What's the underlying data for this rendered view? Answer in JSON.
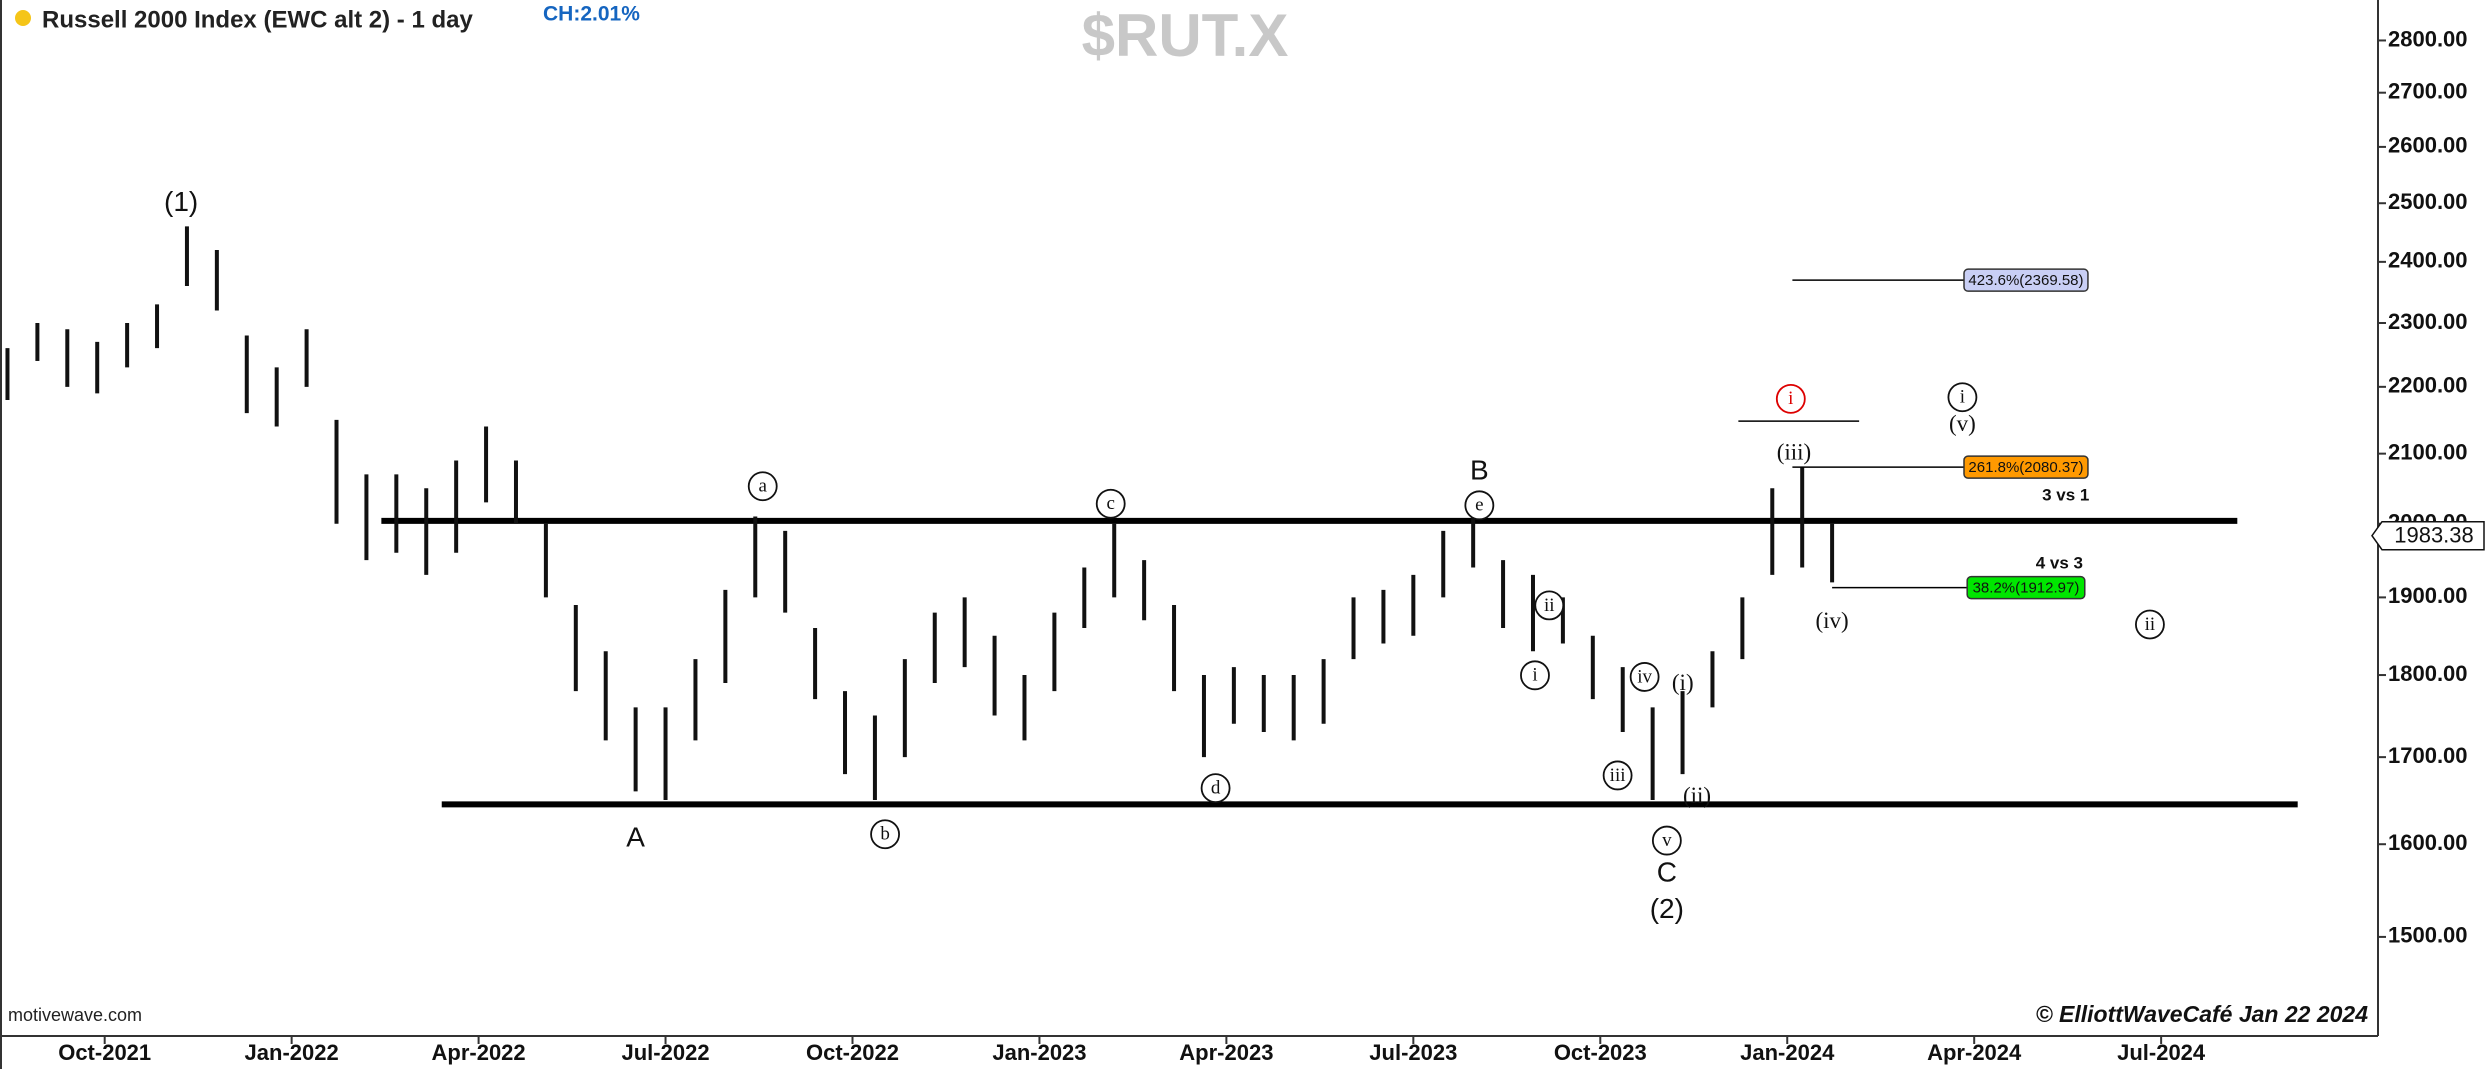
{
  "chart_data": {
    "type": "hl-bar",
    "title": "Russell 2000 Index (EWC alt 2) - 1 day",
    "change": "CH:2.01%",
    "symbol": "$RUT.X",
    "source": "motivewave.com",
    "credit": "© ElliottWaveCafé Jan 22 2024",
    "color": "#111111",
    "log_scale": true,
    "grid": false,
    "xlim": [
      2021.61,
      2024.79
    ],
    "ylim": [
      1400,
      2880
    ],
    "xticks": [
      {
        "value": 2021.75,
        "label": "Oct-2021"
      },
      {
        "value": 2022.0,
        "label": "Jan-2022"
      },
      {
        "value": 2022.25,
        "label": "Apr-2022"
      },
      {
        "value": 2022.5,
        "label": "Jul-2022"
      },
      {
        "value": 2022.75,
        "label": "Oct-2022"
      },
      {
        "value": 2023.0,
        "label": "Jan-2023"
      },
      {
        "value": 2023.25,
        "label": "Apr-2023"
      },
      {
        "value": 2023.5,
        "label": "Jul-2023"
      },
      {
        "value": 2023.75,
        "label": "Oct-2023"
      },
      {
        "value": 2024.0,
        "label": "Jan-2024"
      },
      {
        "value": 2024.25,
        "label": "Apr-2024"
      },
      {
        "value": 2024.5,
        "label": "Jul-2024"
      }
    ],
    "yticks": [
      {
        "value": 1500,
        "label": "1500.00"
      },
      {
        "value": 1600,
        "label": "1600.00"
      },
      {
        "value": 1700,
        "label": "1700.00"
      },
      {
        "value": 1800,
        "label": "1800.00"
      },
      {
        "value": 1900,
        "label": "1900.00"
      },
      {
        "value": 2000,
        "label": "2000.00"
      },
      {
        "value": 2100,
        "label": "2100.00"
      },
      {
        "value": 2200,
        "label": "2200.00"
      },
      {
        "value": 2300,
        "label": "2300.00"
      },
      {
        "value": 2400,
        "label": "2400.00"
      },
      {
        "value": 2500,
        "label": "2500.00"
      },
      {
        "value": 2600,
        "label": "2600.00"
      },
      {
        "value": 2700,
        "label": "2700.00"
      },
      {
        "value": 2800,
        "label": "2800.00"
      }
    ],
    "x": [
      2021.62,
      2021.66,
      2021.7,
      2021.74,
      2021.78,
      2021.82,
      2021.86,
      2021.9,
      2021.94,
      2021.98,
      2022.02,
      2022.06,
      2022.1,
      2022.14,
      2022.18,
      2022.22,
      2022.26,
      2022.3,
      2022.34,
      2022.38,
      2022.42,
      2022.46,
      2022.5,
      2022.54,
      2022.58,
      2022.62,
      2022.66,
      2022.7,
      2022.74,
      2022.78,
      2022.82,
      2022.86,
      2022.9,
      2022.94,
      2022.98,
      2023.02,
      2023.06,
      2023.1,
      2023.14,
      2023.18,
      2023.22,
      2023.26,
      2023.3,
      2023.34,
      2023.38,
      2023.42,
      2023.46,
      2023.5,
      2023.54,
      2023.58,
      2023.62,
      2023.66,
      2023.7,
      2023.74,
      2023.78,
      2023.82,
      2023.86,
      2023.9,
      2023.94,
      2023.98,
      2024.02,
      2024.06
    ],
    "high": [
      2260,
      2300,
      2290,
      2270,
      2300,
      2330,
      2460,
      2420,
      2280,
      2230,
      2290,
      2150,
      2070,
      2070,
      2050,
      2090,
      2140,
      2090,
      2000,
      1890,
      1830,
      1760,
      1760,
      1820,
      1910,
      2010,
      1990,
      1860,
      1780,
      1750,
      1820,
      1880,
      1900,
      1850,
      1800,
      1880,
      1940,
      2000,
      1950,
      1890,
      1800,
      1810,
      1800,
      1800,
      1820,
      1900,
      1910,
      1930,
      1990,
      2010,
      1950,
      1930,
      1900,
      1850,
      1810,
      1760,
      1780,
      1830,
      1900,
      2050,
      2080,
      2000
    ],
    "low": [
      2180,
      2240,
      2200,
      2190,
      2230,
      2260,
      2360,
      2320,
      2160,
      2140,
      2200,
      2000,
      1950,
      1960,
      1930,
      1960,
      2030,
      2000,
      1900,
      1780,
      1720,
      1660,
      1650,
      1720,
      1790,
      1900,
      1880,
      1770,
      1680,
      1650,
      1700,
      1790,
      1810,
      1750,
      1720,
      1780,
      1860,
      1900,
      1870,
      1780,
      1700,
      1740,
      1730,
      1720,
      1740,
      1820,
      1840,
      1850,
      1900,
      1940,
      1860,
      1830,
      1840,
      1770,
      1730,
      1650,
      1680,
      1760,
      1820,
      1930,
      1940,
      1920
    ],
    "support_lines": [
      2004,
      1645
    ],
    "last_price": 1983.38,
    "levels": [
      {
        "label": "423.6%(2369.58)",
        "value": 2369.58,
        "color": "#c9cff5"
      },
      {
        "label": "261.8%(2080.37)",
        "value": 2080.37,
        "color": "#ff9900"
      },
      {
        "label": "38.2%(1912.97)",
        "value": 1912.97,
        "color": "#00e600"
      }
    ],
    "notes": [
      "3 vs 1",
      "4 vs 3"
    ],
    "annotations": [
      "(1)",
      "A",
      "a",
      "b",
      "c",
      "d",
      "e",
      "B",
      "i",
      "ii",
      "iii",
      "iv",
      "v",
      "C",
      "(2)",
      "(i)",
      "(ii)",
      "(iii)",
      "(iv)",
      "i",
      "i",
      "(v)",
      "ii"
    ]
  }
}
